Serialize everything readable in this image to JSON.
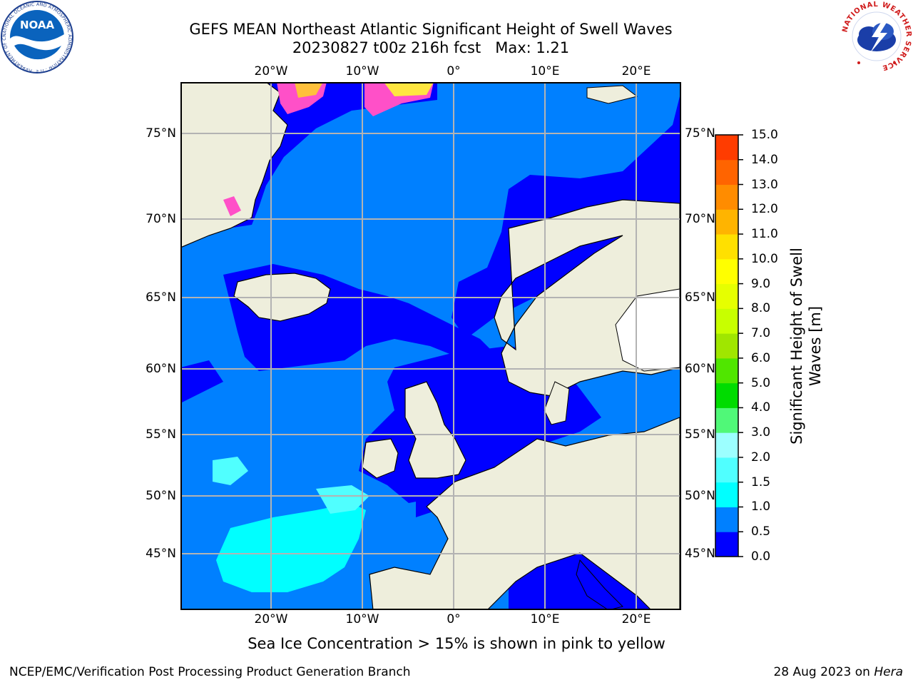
{
  "title": {
    "line1": "GEFS MEAN Northeast Atlantic Significant Height of Swell Waves",
    "line2": "20230827 t00z 216h fcst   Max: 1.21"
  },
  "logos": {
    "left": "NOAA",
    "left_ring_text": "NATIONAL OCEANIC AND ATMOSPHERIC ADMINISTRATION · U.S. DEPARTMENT OF COMMERCE",
    "right_ring_text": "NATIONAL WEATHER SERVICE"
  },
  "map": {
    "lon_labels": [
      "20°W",
      "10°W",
      "0°",
      "10°E",
      "20°E"
    ],
    "lat_labels": [
      "75°N",
      "70°N",
      "65°N",
      "60°N",
      "55°N",
      "50°N",
      "45°N"
    ],
    "colors": {
      "ocean_low": "#0000ff",
      "ocean_mid": "#0080ff",
      "ocean_cyan": "#00ffff",
      "ocean_lightcyan": "#50ffff",
      "land": "#eeeedc",
      "ice_pink": "#ff50c8",
      "ice_orange": "#ffc03c",
      "ice_yellow": "#ffe640",
      "grid": "#b3b3b3"
    }
  },
  "colorbar": {
    "label": "Significant Height of Swell Waves [m]",
    "ticks": [
      "15.0",
      "14.0",
      "13.0",
      "12.0",
      "11.0",
      "10.0",
      "9.0",
      "8.0",
      "7.0",
      "6.0",
      "5.0",
      "4.0",
      "3.0",
      "2.0",
      "1.5",
      "1.0",
      "0.5",
      "0.0"
    ],
    "bands": [
      "#0000ff",
      "#0080ff",
      "#00ffff",
      "#50ffff",
      "#9cffff",
      "#50f878",
      "#00dc00",
      "#50e600",
      "#a0e600",
      "#c8ff00",
      "#e6ff00",
      "#ffff00",
      "#ffe000",
      "#ffb400",
      "#ff8c00",
      "#ff6400",
      "#ff3c00",
      "#ff0000"
    ]
  },
  "ice_note": "Sea Ice Concentration > 15% is shown in pink to yellow",
  "footer": {
    "left": "NCEP/EMC/Verification Post Processing Product Generation Branch",
    "date": "28 Aug 2023 on ",
    "machine": "Hera"
  }
}
